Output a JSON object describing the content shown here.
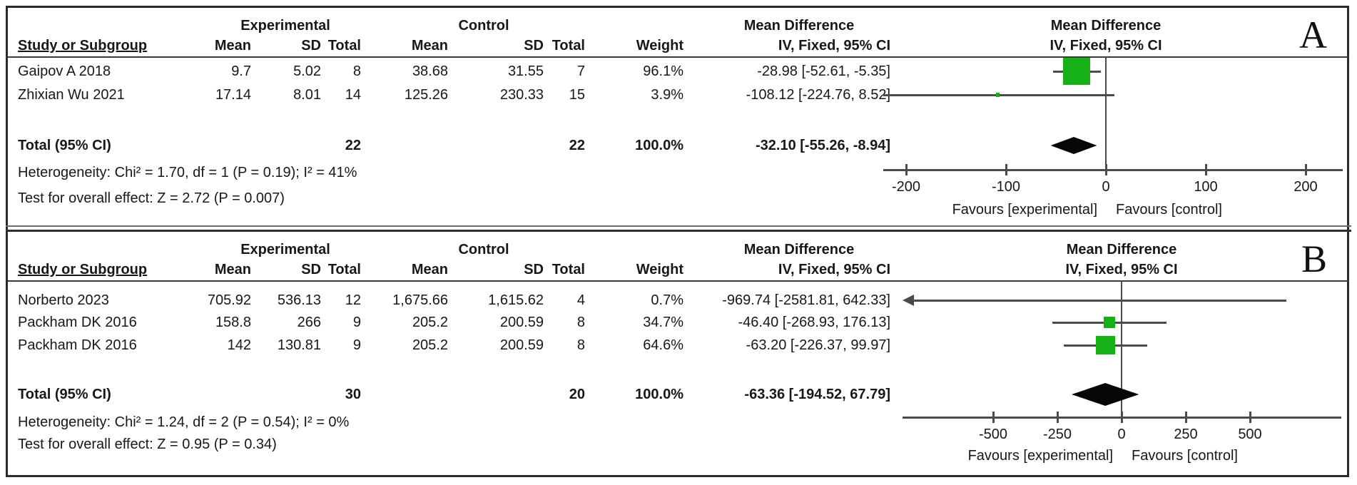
{
  "figure": {
    "header": {
      "study": "Study or Subgroup",
      "experimental": "Experimental",
      "control": "Control",
      "mean": "Mean",
      "sd": "SD",
      "total": "Total",
      "weight": "Weight",
      "mean_difference": "Mean Difference",
      "method": "IV, Fixed, 95% CI"
    },
    "favours_left": "Favours [experimental]",
    "favours_right": "Favours [control]",
    "marker_color": "#16b116",
    "diamond_color": "#060606"
  },
  "chart_data": [
    {
      "type": "forest",
      "panel_label": "A",
      "effect_measure": "Mean Difference",
      "model": "IV, Fixed, 95% CI",
      "rows": [
        {
          "study": "Gaipov A 2018",
          "exp_mean": "9.7",
          "exp_sd": "5.02",
          "exp_total": "8",
          "ctrl_mean": "38.68",
          "ctrl_sd": "31.55",
          "ctrl_total": "7",
          "weight_pct": 96.1,
          "weight": "96.1%",
          "md": -28.98,
          "ci_low": -52.61,
          "ci_high": -5.35,
          "ci_text": "-28.98 [-52.61, -5.35]"
        },
        {
          "study": "Zhixian Wu 2021",
          "exp_mean": "17.14",
          "exp_sd": "8.01",
          "exp_total": "14",
          "ctrl_mean": "125.26",
          "ctrl_sd": "230.33",
          "ctrl_total": "15",
          "weight_pct": 3.9,
          "weight": "3.9%",
          "md": -108.12,
          "ci_low": -224.76,
          "ci_high": 8.52,
          "ci_text": "-108.12 [-224.76, 8.52]"
        }
      ],
      "total": {
        "label": "Total (95% CI)",
        "exp_total": "22",
        "ctrl_total": "22",
        "weight": "100.0%",
        "md": -32.1,
        "ci_low": -55.26,
        "ci_high": -8.94,
        "ci_text": "-32.10 [-55.26, -8.94]"
      },
      "heterogeneity": "Heterogeneity: Chi² = 1.70, df = 1 (P = 0.19); I² = 41%",
      "overall_effect": "Test for overall effect: Z = 2.72 (P = 0.007)",
      "axis": {
        "min": -222,
        "max": 237,
        "ticks": [
          -200,
          -100,
          0,
          100,
          200
        ]
      }
    },
    {
      "type": "forest",
      "panel_label": "B",
      "effect_measure": "Mean Difference",
      "model": "IV, Fixed, 95% CI",
      "rows": [
        {
          "study": "Norberto 2023",
          "exp_mean": "705.92",
          "exp_sd": "536.13",
          "exp_total": "12",
          "ctrl_mean": "1,675.66",
          "ctrl_sd": "1,615.62",
          "ctrl_total": "4",
          "weight_pct": 0.7,
          "weight": "0.7%",
          "md": -969.74,
          "ci_low": -2581.81,
          "ci_high": 642.33,
          "ci_text": "-969.74 [-2581.81, 642.33]"
        },
        {
          "study": "Packham DK 2016",
          "exp_mean": "158.8",
          "exp_sd": "266",
          "exp_total": "9",
          "ctrl_mean": "205.2",
          "ctrl_sd": "200.59",
          "ctrl_total": "8",
          "weight_pct": 34.7,
          "weight": "34.7%",
          "md": -46.4,
          "ci_low": -268.93,
          "ci_high": 176.13,
          "ci_text": "-46.40 [-268.93, 176.13]"
        },
        {
          "study": "Packham DK 2016",
          "exp_mean": "142",
          "exp_sd": "130.81",
          "exp_total": "9",
          "ctrl_mean": "205.2",
          "ctrl_sd": "200.59",
          "ctrl_total": "8",
          "weight_pct": 64.6,
          "weight": "64.6%",
          "md": -63.2,
          "ci_low": -226.37,
          "ci_high": 99.97,
          "ci_text": "-63.20 [-226.37, 99.97]"
        }
      ],
      "total": {
        "label": "Total (95% CI)",
        "exp_total": "30",
        "ctrl_total": "20",
        "weight": "100.0%",
        "md": -63.36,
        "ci_low": -194.52,
        "ci_high": 67.79,
        "ci_text": "-63.36 [-194.52, 67.79]"
      },
      "heterogeneity": "Heterogeneity: Chi² = 1.24, df = 2 (P = 0.54); I² = 0%",
      "overall_effect": "Test for overall effect: Z = 0.95 (P = 0.34)",
      "axis": {
        "min": -853,
        "max": 856,
        "ticks": [
          -500,
          -250,
          0,
          250,
          500
        ]
      }
    }
  ]
}
